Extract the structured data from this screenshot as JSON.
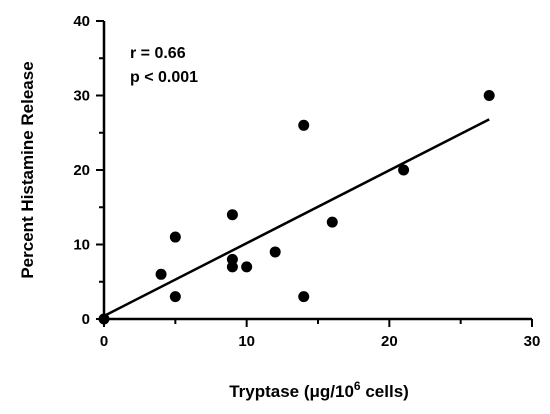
{
  "chart_data": {
    "type": "scatter",
    "title": "",
    "xlabel": "Tryptase (μg/10",
    "xlabel_sup": "6",
    "xlabel_suffix": " cells)",
    "ylabel": "Percent  Histamine  Release",
    "xlim": [
      0,
      30
    ],
    "ylim": [
      0,
      40
    ],
    "xticks": [
      0,
      10,
      20,
      30
    ],
    "yticks": [
      0,
      10,
      20,
      30,
      40
    ],
    "grid": false,
    "legend": "none",
    "annotations": [
      "r = 0.66",
      "p < 0.001"
    ],
    "points": [
      {
        "x": 0,
        "y": 0
      },
      {
        "x": 4,
        "y": 6
      },
      {
        "x": 5,
        "y": 3
      },
      {
        "x": 5,
        "y": 11
      },
      {
        "x": 9,
        "y": 14
      },
      {
        "x": 9,
        "y": 8
      },
      {
        "x": 9,
        "y": 7
      },
      {
        "x": 10,
        "y": 7
      },
      {
        "x": 12,
        "y": 9
      },
      {
        "x": 14,
        "y": 26
      },
      {
        "x": 14,
        "y": 3
      },
      {
        "x": 16,
        "y": 13
      },
      {
        "x": 21,
        "y": 20
      },
      {
        "x": 27,
        "y": 30
      }
    ],
    "fit_line": {
      "x": [
        0,
        27
      ],
      "y": [
        0.4,
        26.8
      ]
    },
    "colors": {
      "marker": "#000000",
      "line": "#000000",
      "axis": "#000000"
    }
  }
}
